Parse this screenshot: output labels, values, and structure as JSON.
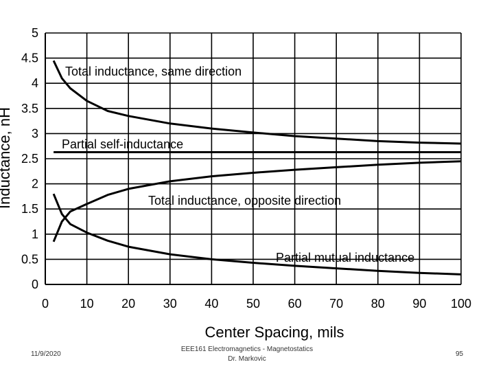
{
  "chart_data": {
    "type": "line",
    "xlabel": "Center Spacing, mils",
    "ylabel": "Inductance, nH",
    "xlim": [
      0,
      100
    ],
    "ylim": [
      0,
      5
    ],
    "x_ticks": [
      0,
      10,
      20,
      30,
      40,
      50,
      60,
      70,
      80,
      90,
      100
    ],
    "y_ticks": [
      0,
      0.5,
      1,
      1.5,
      2,
      2.5,
      3,
      3.5,
      4,
      4.5,
      5
    ],
    "grid": true,
    "series": [
      {
        "name": "Total inductance, same direction",
        "x": [
          2,
          4,
          6,
          10,
          15,
          20,
          30,
          40,
          50,
          60,
          70,
          80,
          90,
          100
        ],
        "y": [
          4.45,
          4.1,
          3.9,
          3.65,
          3.45,
          3.35,
          3.2,
          3.1,
          3.02,
          2.95,
          2.9,
          2.85,
          2.82,
          2.8
        ]
      },
      {
        "name": "Partial self-inductance",
        "x": [
          2,
          100
        ],
        "y": [
          2.63,
          2.63
        ]
      },
      {
        "name": "Total inductance, opposite direction",
        "x": [
          2,
          4,
          6,
          10,
          15,
          20,
          30,
          40,
          50,
          60,
          70,
          80,
          90,
          100
        ],
        "y": [
          0.85,
          1.25,
          1.45,
          1.6,
          1.78,
          1.9,
          2.05,
          2.15,
          2.22,
          2.28,
          2.33,
          2.38,
          2.42,
          2.45
        ]
      },
      {
        "name": "Partial mutual inductance",
        "x": [
          2,
          4,
          6,
          10,
          15,
          20,
          30,
          40,
          50,
          60,
          70,
          80,
          90,
          100
        ],
        "y": [
          1.8,
          1.4,
          1.2,
          1.03,
          0.87,
          0.75,
          0.6,
          0.5,
          0.43,
          0.37,
          0.32,
          0.27,
          0.23,
          0.2
        ]
      }
    ]
  },
  "footer": {
    "date": "11/9/2020",
    "course": "EEE161 Electromagnetics - Magnetostatics",
    "author": "Dr. Markovic",
    "page": "95"
  }
}
